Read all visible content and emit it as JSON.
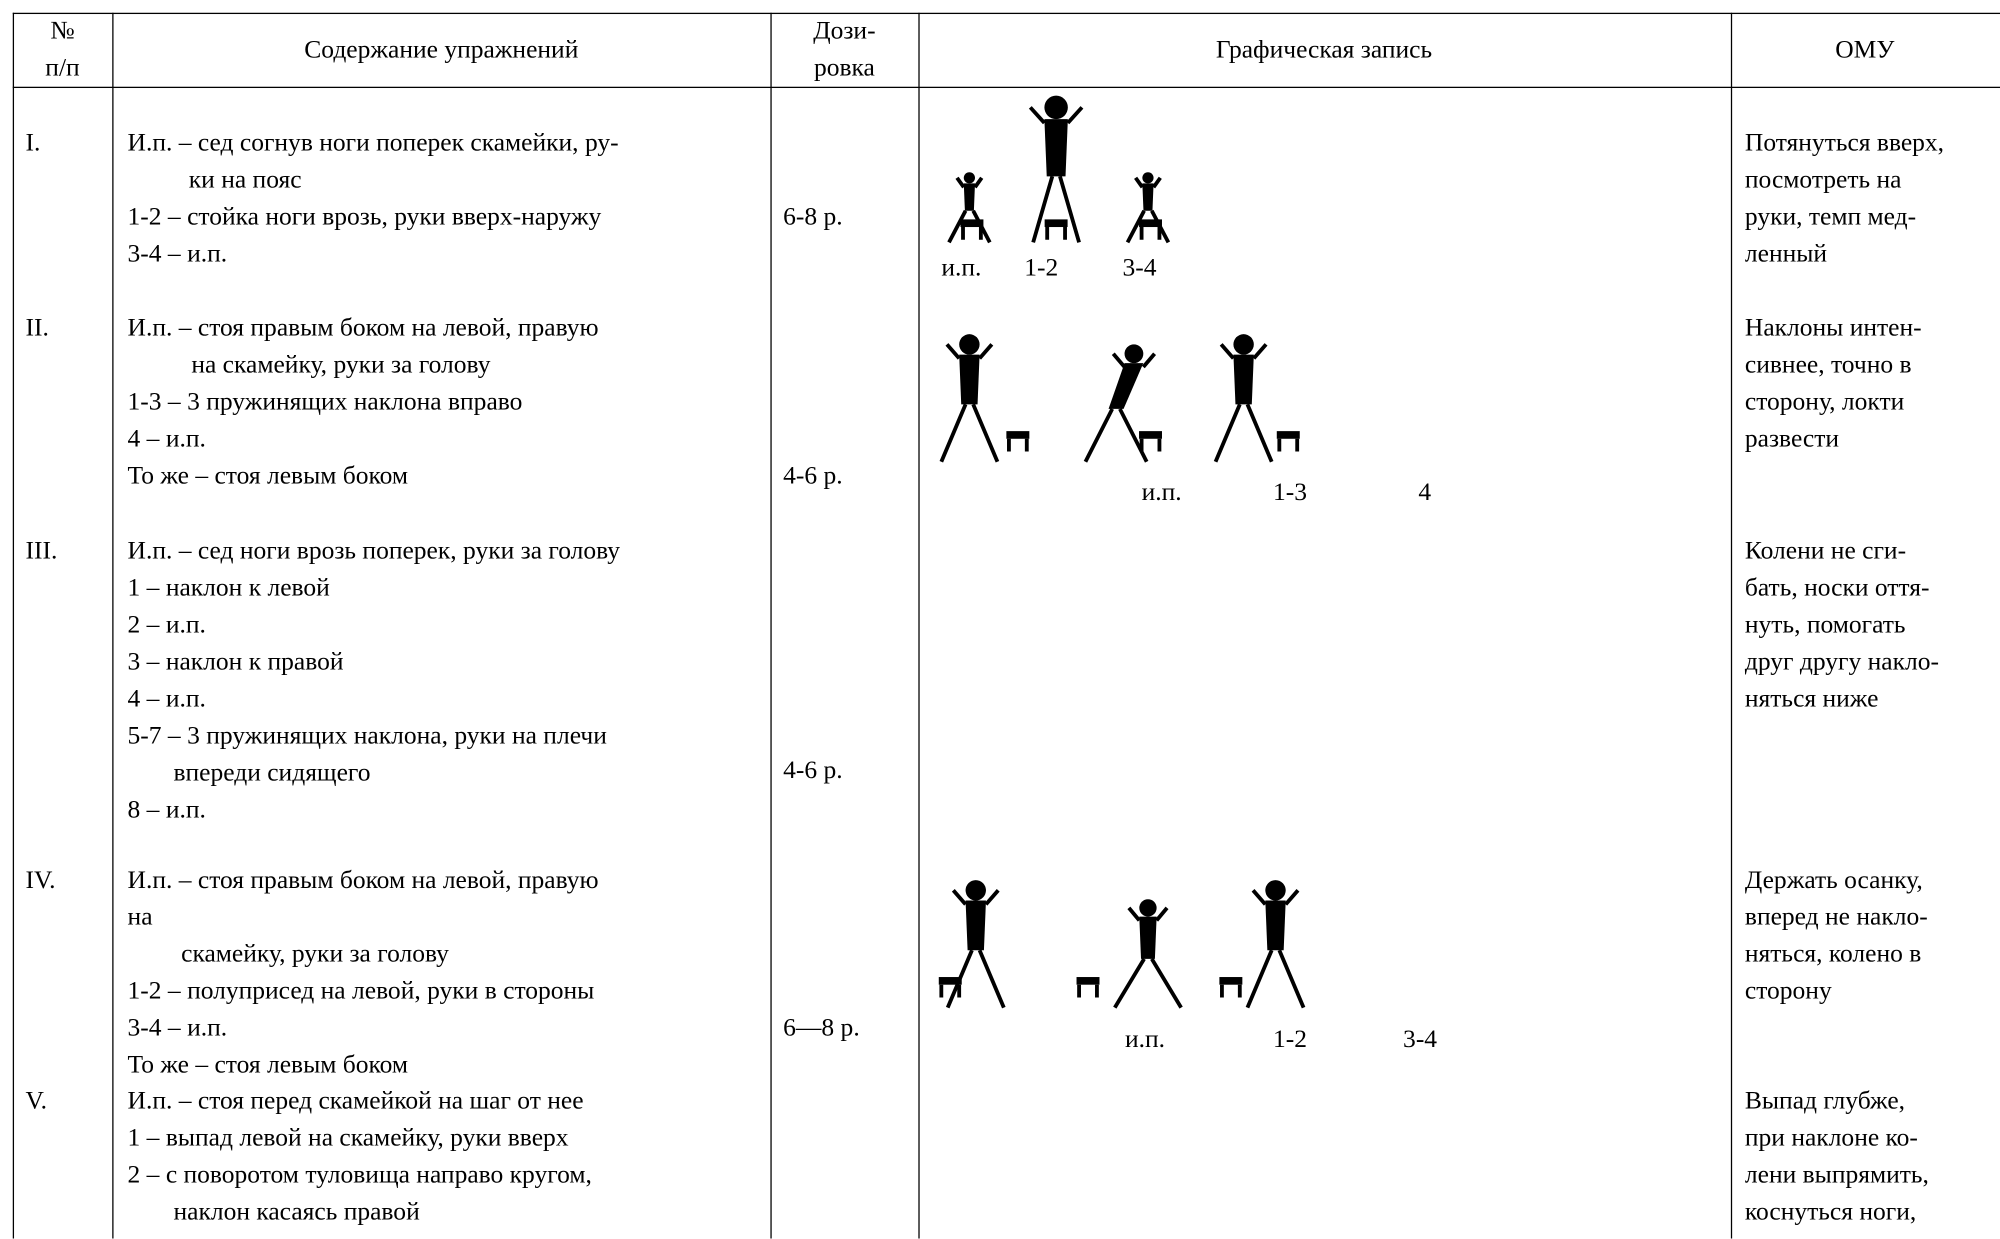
{
  "header": {
    "number": [
      "№",
      "п/п"
    ],
    "content": "Содержание упражнений",
    "dosage": [
      "Дози-",
      "ровка"
    ],
    "graphic": "Графическая запись",
    "omu": "ОМУ"
  },
  "rows": [
    {
      "number": "I.",
      "content": [
        "И.п. – сед согнув ноги поперек скамейки, ру-",
        "ки  на пояс",
        "1-2 – стойка ноги врозь, руки вверх-наружу",
        "3-4 – и.п."
      ],
      "dosage": "6-8 р.",
      "graphic_labels": [
        "и.п.",
        "1-2",
        "3-4"
      ],
      "omu": [
        "Потянуться вверх,",
        "посмотреть на",
        "руки, темп мед-",
        "ленный"
      ]
    },
    {
      "number": "II.",
      "content": [
        "И.п. – стоя правым боком на левой, правую",
        "на скамейку, руки за голову",
        "1-3 – 3 пружинящих наклона вправо",
        "4 – и.п.",
        "То же – стоя левым боком"
      ],
      "dosage": "4-6 р.",
      "graphic_labels": [
        "и.п.",
        "1-3",
        "4"
      ],
      "omu": [
        "Наклоны интен-",
        "сивнее, точно в",
        "сторону, локти",
        "развести"
      ]
    },
    {
      "number": "III.",
      "content": [
        "И.п. – сед ноги врозь поперек, руки за голову",
        "1 – наклон к левой",
        "2 – и.п.",
        "3 – наклон к правой",
        "4 – и.п.",
        "5-7 – 3 пружинящих наклона, руки на плечи",
        "впереди сидящего",
        "8 – и.п."
      ],
      "dosage": "4-6 р.",
      "omu": [
        "Колени не сги-",
        "бать, носки оття-",
        "нуть, помогать",
        "друг другу накло-",
        "няться ниже"
      ]
    },
    {
      "number": "IV.",
      "content": [
        "И.п. – стоя правым боком на левой, правую",
        "на",
        "скамейку, руки за голову",
        "1-2 – полуприсед на левой, руки в стороны",
        "3-4 – и.п.",
        "То же – стоя левым боком"
      ],
      "dosage": "6—8 р.",
      "graphic_labels": [
        "и.п.",
        "1-2",
        "3-4"
      ],
      "omu": [
        "Держать осанку,",
        "вперед не накло-",
        "няться, колено в",
        "сторону"
      ]
    },
    {
      "number": "V.",
      "content": [
        "И.п. – стоя перед скамейкой на шаг от нее",
        "1 – выпад левой на скамейку, руки вверх",
        "2 – с поворотом туловища направо кругом,",
        "наклон касаясь правой"
      ],
      "omu": [
        "Выпад глубже,",
        "при наклоне ко-",
        "лени выпрямить,",
        "коснуться ноги,"
      ]
    }
  ]
}
